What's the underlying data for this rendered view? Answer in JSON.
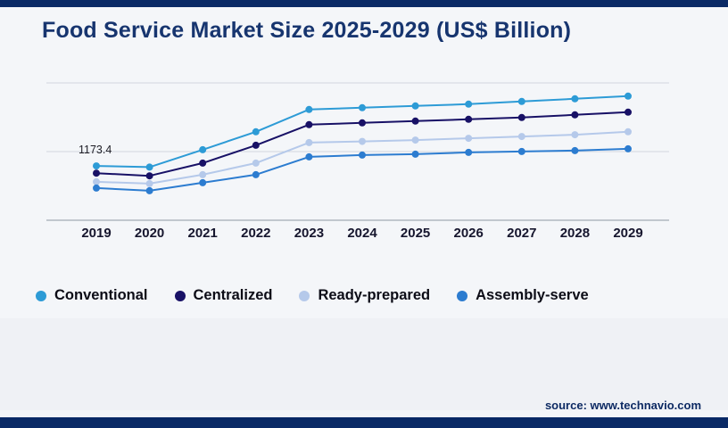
{
  "title": "Food Service Market Size 2025-2029 (US$ Billion)",
  "source": {
    "text": "source: www.technavio.com"
  },
  "chart_data": {
    "type": "line",
    "title": "Food Service Market Size 2025-2029 (US$ Billion)",
    "x": [
      "2019",
      "2020",
      "2021",
      "2022",
      "2023",
      "2024",
      "2025",
      "2026",
      "2027",
      "2028",
      "2029"
    ],
    "series": [
      {
        "name": "Conventional",
        "color": "#2d9bd6",
        "values": [
          1173.4,
          1168,
          1246,
          1326,
          1426,
          1434,
          1442,
          1450,
          1462,
          1474,
          1486
        ]
      },
      {
        "name": "Centralized",
        "color": "#181166",
        "values": [
          1141,
          1129,
          1186,
          1266,
          1358,
          1366,
          1374,
          1382,
          1390,
          1402,
          1414
        ]
      },
      {
        "name": "Ready-prepared",
        "color": "#b5c9ea",
        "values": [
          1102,
          1094,
          1134,
          1186,
          1278,
          1283,
          1289,
          1297,
          1305,
          1313,
          1326
        ]
      },
      {
        "name": "Assembly-serve",
        "color": "#2c7cd0",
        "values": [
          1074,
          1062,
          1098,
          1134,
          1214,
          1222,
          1226,
          1234,
          1238,
          1242,
          1250
        ]
      }
    ],
    "ylim": [
      930,
      1545
    ],
    "annotation": {
      "text": "1173.4",
      "series": "Conventional",
      "x": "2019"
    },
    "legend_position": "bottom",
    "grid": "horizontal",
    "xlabel": "",
    "ylabel": ""
  },
  "colors": {
    "accent_bar": "#0a2a66",
    "title": "#17356f",
    "axis_label": "#16162e",
    "gridline": "#d2d7de",
    "axis_line": "#b0b7c0",
    "background": "#f4f6f9",
    "annotation_text": "#1c1c24"
  }
}
